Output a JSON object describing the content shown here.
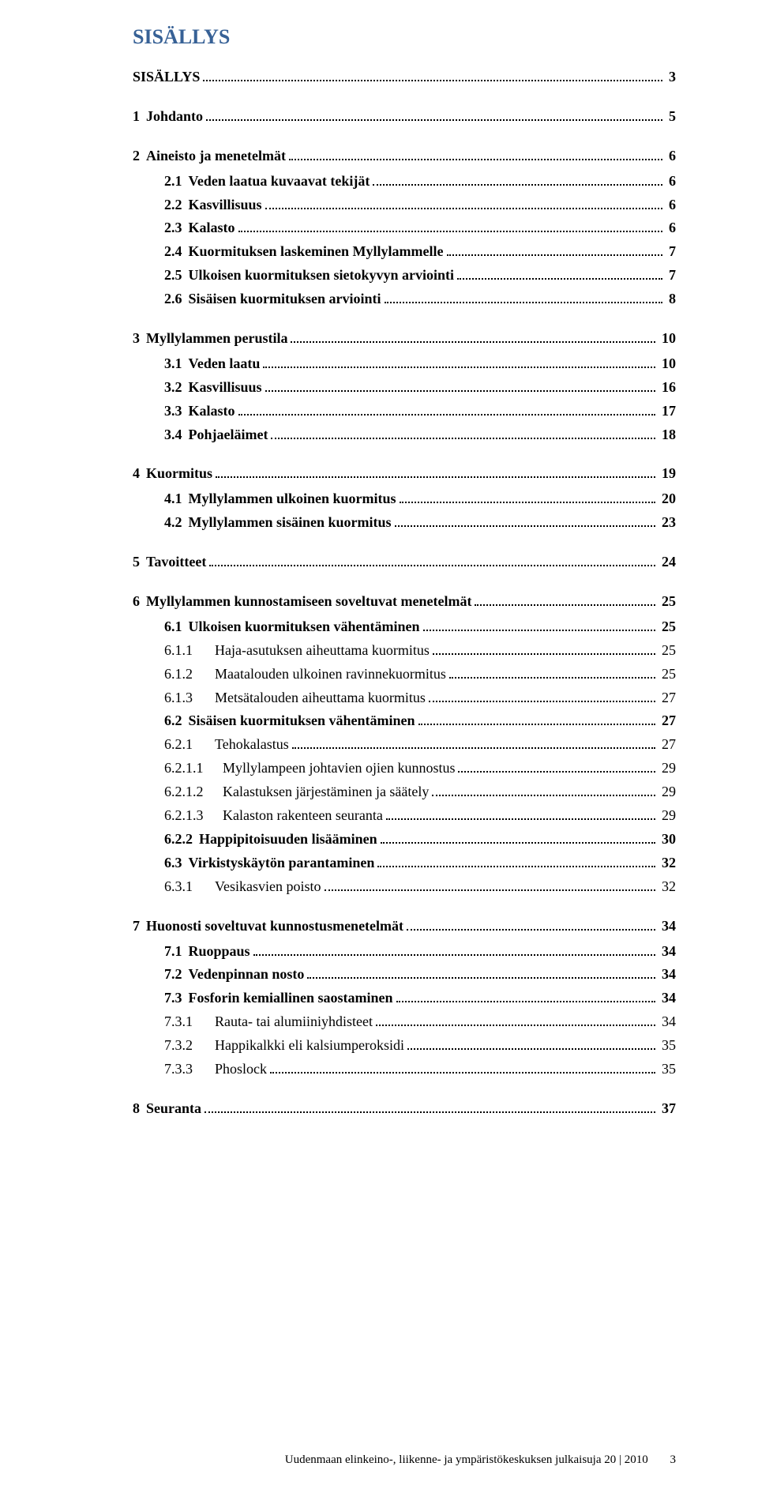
{
  "page_title": "SISÄLLYS",
  "footer": {
    "text": "Uudenmaan elinkeino-, liikenne- ja ympäristökeskuksen julkaisuja 20 | 2010",
    "page_number": "3"
  },
  "toc": [
    {
      "level": 1,
      "num": "",
      "title": "SISÄLLYS",
      "page": "3"
    },
    {
      "level": 1,
      "num": "1",
      "title": "Johdanto",
      "page": "5"
    },
    {
      "level": 1,
      "num": "2",
      "title": "Aineisto ja menetelmät",
      "page": "6"
    },
    {
      "level": 2,
      "num": "2.1",
      "title": "Veden laatua kuvaavat tekijät",
      "page": "6"
    },
    {
      "level": 2,
      "num": "2.2",
      "title": "Kasvillisuus",
      "page": "6"
    },
    {
      "level": 2,
      "num": "2.3",
      "title": "Kalasto",
      "page": "6"
    },
    {
      "level": 2,
      "num": "2.4",
      "title": "Kuormituksen laskeminen Myllylammelle",
      "page": "7"
    },
    {
      "level": 2,
      "num": "2.5",
      "title": "Ulkoisen kuormituksen sietokyvyn arviointi",
      "page": "7"
    },
    {
      "level": 2,
      "num": "2.6",
      "title": "Sisäisen kuormituksen arviointi",
      "page": "8"
    },
    {
      "level": 1,
      "num": "3",
      "title": "Myllylammen perustila",
      "page": "10"
    },
    {
      "level": 2,
      "num": "3.1",
      "title": "Veden laatu",
      "page": "10"
    },
    {
      "level": 2,
      "num": "3.2",
      "title": "Kasvillisuus",
      "page": "16"
    },
    {
      "level": 2,
      "num": "3.3",
      "title": "Kalasto",
      "page": "17"
    },
    {
      "level": 2,
      "num": "3.4",
      "title": "Pohjaeläimet",
      "page": "18"
    },
    {
      "level": 1,
      "num": "4",
      "title": "Kuormitus",
      "page": "19"
    },
    {
      "level": 2,
      "num": "4.1",
      "title": "Myllylammen ulkoinen kuormitus",
      "page": "20"
    },
    {
      "level": 2,
      "num": "4.2",
      "title": "Myllylammen sisäinen kuormitus",
      "page": "23"
    },
    {
      "level": 1,
      "num": "5",
      "title": "Tavoitteet",
      "page": "24"
    },
    {
      "level": 1,
      "num": "6",
      "title": "Myllylammen kunnostamiseen soveltuvat menetelmät",
      "page": "25"
    },
    {
      "level": 2,
      "num": "6.1",
      "title": "Ulkoisen kuormituksen vähentäminen",
      "page": "25"
    },
    {
      "level": 3,
      "num": "6.1.1",
      "title": "Haja-asutuksen aiheuttama kuormitus",
      "page": "25"
    },
    {
      "level": 3,
      "num": "6.1.2",
      "title": "Maatalouden ulkoinen ravinnekuormitus",
      "page": "25"
    },
    {
      "level": 3,
      "num": "6.1.3",
      "title": "Metsätalouden aiheuttama kuormitus",
      "page": "27"
    },
    {
      "level": 2,
      "num": "6.2",
      "title": "Sisäisen kuormituksen vähentäminen",
      "page": "27"
    },
    {
      "level": 3,
      "num": "6.2.1",
      "title": "Tehokalastus",
      "page": "27"
    },
    {
      "level": 4,
      "num": "6.2.1.1",
      "title": "Myllylampeen johtavien ojien kunnostus",
      "page": "29"
    },
    {
      "level": 4,
      "num": "6.2.1.2",
      "title": "Kalastuksen järjestäminen ja säätely",
      "page": "29"
    },
    {
      "level": 4,
      "num": "6.2.1.3",
      "title": "Kalaston rakenteen seuranta",
      "page": "29"
    },
    {
      "level": 2,
      "num": "6.2.2",
      "title": "Happipitoisuuden lisääminen",
      "page": "30"
    },
    {
      "level": 2,
      "num": "6.3",
      "title": "Virkistyskäytön parantaminen",
      "page": "32"
    },
    {
      "level": 3,
      "num": "6.3.1",
      "title": "Vesikasvien poisto",
      "page": "32"
    },
    {
      "level": 1,
      "num": "7",
      "title": "Huonosti soveltuvat kunnostusmenetelmät",
      "page": "34"
    },
    {
      "level": 2,
      "num": "7.1",
      "title": "Ruoppaus",
      "page": "34"
    },
    {
      "level": 2,
      "num": "7.2",
      "title": "Vedenpinnan nosto",
      "page": "34"
    },
    {
      "level": 2,
      "num": "7.3",
      "title": "Fosforin kemiallinen saostaminen",
      "page": "34"
    },
    {
      "level": 3,
      "num": "7.3.1",
      "title": "Rauta- tai alumiiniyhdisteet",
      "page": "34"
    },
    {
      "level": 3,
      "num": "7.3.2",
      "title": "Happikalkki eli kalsiumperoksidi",
      "page": "35"
    },
    {
      "level": 3,
      "num": "7.3.3",
      "title": "Phoslock",
      "page": "35"
    },
    {
      "level": 1,
      "num": "8",
      "title": "Seuranta",
      "page": "37"
    }
  ]
}
